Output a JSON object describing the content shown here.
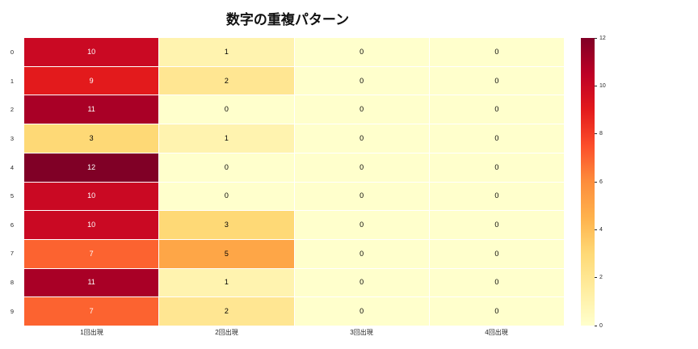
{
  "title": "数字の重複パターン",
  "chart_data": {
    "type": "heatmap",
    "title": "数字の重複パターン",
    "columns": [
      "1回出現",
      "2回出現",
      "3回出現",
      "4回出現"
    ],
    "rows": [
      "0",
      "1",
      "2",
      "3",
      "4",
      "5",
      "6",
      "7",
      "8",
      "9"
    ],
    "values": [
      [
        10,
        1,
        0,
        0
      ],
      [
        9,
        2,
        0,
        0
      ],
      [
        11,
        0,
        0,
        0
      ],
      [
        3,
        1,
        0,
        0
      ],
      [
        12,
        0,
        0,
        0
      ],
      [
        10,
        0,
        0,
        0
      ],
      [
        10,
        3,
        0,
        0
      ],
      [
        7,
        5,
        0,
        0
      ],
      [
        11,
        1,
        0,
        0
      ],
      [
        7,
        2,
        0,
        0
      ]
    ],
    "vmin": 0,
    "vmax": 12,
    "colormap": "YlOrRd",
    "colorbar_ticks": [
      0,
      2,
      4,
      6,
      8,
      10,
      12
    ],
    "gridline_color": "#ffffff",
    "annotation_light_color": "#000000",
    "annotation_dark_color": "#ffffff"
  }
}
